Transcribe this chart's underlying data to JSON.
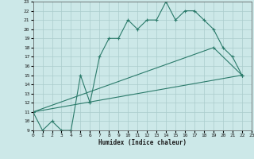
{
  "xlabel": "Humidex (Indice chaleur)",
  "bg_color": "#cce8e8",
  "grid_color": "#aacccc",
  "line_color": "#2a7a6a",
  "xlim": [
    0,
    23
  ],
  "ylim": [
    9,
    23
  ],
  "x_ticks": [
    0,
    1,
    2,
    3,
    4,
    5,
    6,
    7,
    8,
    9,
    10,
    11,
    12,
    13,
    14,
    15,
    16,
    17,
    18,
    19,
    20,
    21,
    22,
    23
  ],
  "y_ticks": [
    9,
    10,
    11,
    12,
    13,
    14,
    15,
    16,
    17,
    18,
    19,
    20,
    21,
    22,
    23
  ],
  "line1_x": [
    0,
    1,
    2,
    3,
    4,
    5,
    6,
    7,
    8,
    9,
    10,
    11,
    12,
    13,
    14,
    15,
    16,
    17,
    18,
    19,
    20,
    21,
    22
  ],
  "line1_y": [
    11,
    9,
    10,
    9,
    9,
    15,
    12,
    17,
    19,
    19,
    21,
    20,
    21,
    21,
    23,
    21,
    22,
    22,
    21,
    20,
    18,
    17,
    15
  ],
  "line2_x": [
    0,
    19,
    22
  ],
  "line2_y": [
    11,
    18,
    15
  ],
  "line3_x": [
    0,
    22
  ],
  "line3_y": [
    11,
    15
  ]
}
